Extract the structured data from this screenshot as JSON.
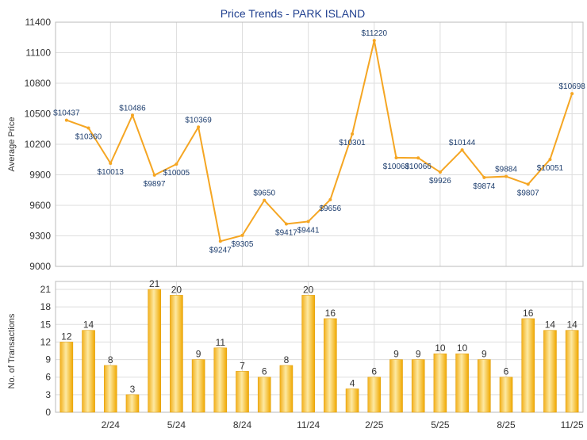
{
  "title": "Price Trends - PARK ISLAND",
  "colors": {
    "line": "#f5a623",
    "bar_light": "#fde9a2",
    "bar_dark": "#f0a800",
    "grid": "#dddddd",
    "title": "#1f3f8f",
    "axis_text": "#333333",
    "label_text": "#1f3f6f"
  },
  "chart_data": [
    {
      "type": "line",
      "ylabel": "Average Price",
      "ylim": [
        9000,
        11400
      ],
      "yticks": [
        9000,
        9300,
        9600,
        9900,
        10200,
        10500,
        10800,
        11100,
        11400
      ],
      "grid": true,
      "values": [
        10437,
        10360,
        10013,
        10486,
        9897,
        10005,
        10369,
        9247,
        9305,
        9650,
        9417,
        9441,
        9656,
        10301,
        11220,
        10068,
        10066,
        9926,
        10144,
        9874,
        9884,
        9807,
        10051,
        10698
      ],
      "labels": [
        "$10437",
        "$10360",
        "$10013",
        "$10486",
        "$9897",
        "$10005",
        "$10369",
        "$9247",
        "$9305",
        "$9650",
        "$9417",
        "$9441",
        "$9656",
        "$10301",
        "$11220",
        "$10068",
        "$10066",
        "$9926",
        "$10144",
        "$9874",
        "$9884",
        "$9807",
        "$10051",
        "$10698"
      ]
    },
    {
      "type": "bar",
      "ylabel": "No. of Transactions",
      "ylim": [
        0,
        21
      ],
      "yticks": [
        0,
        3,
        6,
        9,
        12,
        15,
        18,
        21
      ],
      "grid": true,
      "values": [
        12,
        14,
        8,
        3,
        21,
        20,
        9,
        11,
        7,
        6,
        8,
        20,
        16,
        4,
        6,
        9,
        9,
        10,
        10,
        9,
        6,
        16,
        14,
        14
      ],
      "xtick_labels": [
        "2/24",
        "5/24",
        "8/24",
        "11/24",
        "2/25",
        "5/25",
        "8/25",
        "11/25"
      ],
      "xtick_index": [
        2,
        5,
        8,
        11,
        14,
        17,
        20,
        23
      ]
    }
  ]
}
